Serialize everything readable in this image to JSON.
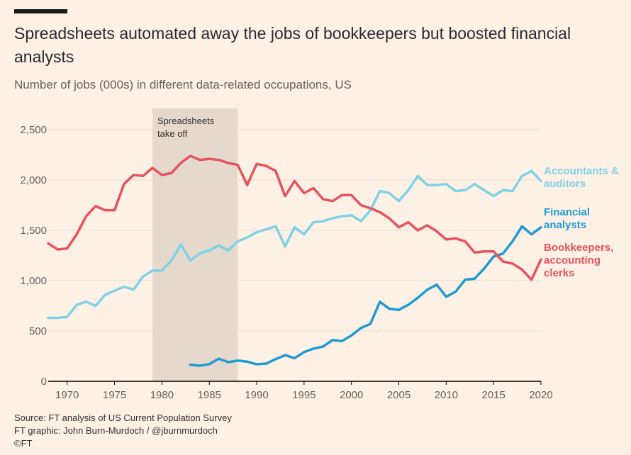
{
  "header": {
    "title": "Spreadsheets automated away the jobs of bookkeepers but boosted financial analysts",
    "subtitle": "Number of jobs (000s) in different data-related occupations, US"
  },
  "footer": {
    "source": "Source: FT analysis of US Current Population Survey",
    "credit": "FT graphic: John Burn-Murdoch / @jburnmurdoch",
    "copyright": "©FT"
  },
  "chart_data": {
    "type": "line",
    "x_range": [
      1968,
      2020
    ],
    "ylim": [
      0,
      2500
    ],
    "grid": true,
    "x_ticks": [
      1970,
      1975,
      1980,
      1985,
      1990,
      1995,
      2000,
      2005,
      2010,
      2015,
      2020
    ],
    "y_ticks": [
      0,
      500,
      1000,
      1500,
      2000,
      2500
    ],
    "y_tick_labels": [
      "0",
      "500",
      "1,000",
      "1,500",
      "2,000",
      "2,500"
    ],
    "shaded_period": {
      "from": 1979,
      "to": 1988,
      "label_lines": [
        "Spreadsheets",
        "take off"
      ]
    },
    "series": [
      {
        "name": "Accountants & auditors",
        "label_lines": [
          "Accountants &",
          "auditors"
        ],
        "color": "#7fd1e6",
        "points": [
          [
            1968,
            630
          ],
          [
            1969,
            630
          ],
          [
            1970,
            640
          ],
          [
            1971,
            760
          ],
          [
            1972,
            790
          ],
          [
            1973,
            750
          ],
          [
            1974,
            860
          ],
          [
            1975,
            900
          ],
          [
            1976,
            940
          ],
          [
            1977,
            910
          ],
          [
            1978,
            1040
          ],
          [
            1979,
            1100
          ],
          [
            1980,
            1100
          ],
          [
            1981,
            1200
          ],
          [
            1982,
            1360
          ],
          [
            1983,
            1200
          ],
          [
            1984,
            1270
          ],
          [
            1985,
            1300
          ],
          [
            1986,
            1350
          ],
          [
            1987,
            1300
          ],
          [
            1988,
            1390
          ],
          [
            1989,
            1430
          ],
          [
            1990,
            1480
          ],
          [
            1991,
            1510
          ],
          [
            1992,
            1540
          ],
          [
            1993,
            1340
          ],
          [
            1994,
            1530
          ],
          [
            1995,
            1460
          ],
          [
            1996,
            1580
          ],
          [
            1997,
            1590
          ],
          [
            1998,
            1620
          ],
          [
            1999,
            1640
          ],
          [
            2000,
            1650
          ],
          [
            2001,
            1590
          ],
          [
            2002,
            1700
          ],
          [
            2003,
            1890
          ],
          [
            2004,
            1870
          ],
          [
            2005,
            1790
          ],
          [
            2006,
            1900
          ],
          [
            2007,
            2040
          ],
          [
            2008,
            1950
          ],
          [
            2009,
            1950
          ],
          [
            2010,
            1960
          ],
          [
            2011,
            1890
          ],
          [
            2012,
            1900
          ],
          [
            2013,
            1960
          ],
          [
            2014,
            1900
          ],
          [
            2015,
            1840
          ],
          [
            2016,
            1900
          ],
          [
            2017,
            1890
          ],
          [
            2018,
            2040
          ],
          [
            2019,
            2090
          ],
          [
            2020,
            1990
          ]
        ]
      },
      {
        "name": "Financial analysts",
        "label_lines": [
          "Financial",
          "analysts"
        ],
        "color": "#1f9bd1",
        "points": [
          [
            1983,
            165
          ],
          [
            1984,
            155
          ],
          [
            1985,
            170
          ],
          [
            1986,
            225
          ],
          [
            1987,
            190
          ],
          [
            1988,
            205
          ],
          [
            1989,
            195
          ],
          [
            1990,
            170
          ],
          [
            1991,
            175
          ],
          [
            1992,
            220
          ],
          [
            1993,
            260
          ],
          [
            1994,
            230
          ],
          [
            1995,
            290
          ],
          [
            1996,
            325
          ],
          [
            1997,
            345
          ],
          [
            1998,
            410
          ],
          [
            1999,
            400
          ],
          [
            2000,
            455
          ],
          [
            2001,
            530
          ],
          [
            2002,
            570
          ],
          [
            2003,
            790
          ],
          [
            2004,
            720
          ],
          [
            2005,
            710
          ],
          [
            2006,
            760
          ],
          [
            2007,
            830
          ],
          [
            2008,
            910
          ],
          [
            2009,
            960
          ],
          [
            2010,
            840
          ],
          [
            2011,
            890
          ],
          [
            2012,
            1010
          ],
          [
            2013,
            1020
          ],
          [
            2014,
            1120
          ],
          [
            2015,
            1240
          ],
          [
            2016,
            1270
          ],
          [
            2017,
            1390
          ],
          [
            2018,
            1540
          ],
          [
            2019,
            1460
          ],
          [
            2020,
            1530
          ]
        ]
      },
      {
        "name": "Bookkeepers, accounting clerks",
        "label_lines": [
          "Bookkeepers,",
          "accounting",
          "clerks"
        ],
        "color": "#e5535d",
        "points": [
          [
            1968,
            1370
          ],
          [
            1969,
            1310
          ],
          [
            1970,
            1320
          ],
          [
            1971,
            1460
          ],
          [
            1972,
            1640
          ],
          [
            1973,
            1740
          ],
          [
            1974,
            1700
          ],
          [
            1975,
            1700
          ],
          [
            1976,
            1960
          ],
          [
            1977,
            2050
          ],
          [
            1978,
            2040
          ],
          [
            1979,
            2120
          ],
          [
            1980,
            2050
          ],
          [
            1981,
            2070
          ],
          [
            1982,
            2170
          ],
          [
            1983,
            2240
          ],
          [
            1984,
            2200
          ],
          [
            1985,
            2210
          ],
          [
            1986,
            2200
          ],
          [
            1987,
            2170
          ],
          [
            1988,
            2150
          ],
          [
            1989,
            1950
          ],
          [
            1990,
            2160
          ],
          [
            1991,
            2140
          ],
          [
            1992,
            2090
          ],
          [
            1993,
            1840
          ],
          [
            1994,
            1990
          ],
          [
            1995,
            1870
          ],
          [
            1996,
            1920
          ],
          [
            1997,
            1810
          ],
          [
            1998,
            1790
          ],
          [
            1999,
            1850
          ],
          [
            2000,
            1850
          ],
          [
            2001,
            1750
          ],
          [
            2002,
            1720
          ],
          [
            2003,
            1680
          ],
          [
            2004,
            1620
          ],
          [
            2005,
            1530
          ],
          [
            2006,
            1580
          ],
          [
            2007,
            1500
          ],
          [
            2008,
            1550
          ],
          [
            2009,
            1490
          ],
          [
            2010,
            1410
          ],
          [
            2011,
            1420
          ],
          [
            2012,
            1390
          ],
          [
            2013,
            1280
          ],
          [
            2014,
            1290
          ],
          [
            2015,
            1290
          ],
          [
            2016,
            1190
          ],
          [
            2017,
            1170
          ],
          [
            2018,
            1110
          ],
          [
            2019,
            1010
          ],
          [
            2020,
            1210
          ]
        ]
      }
    ]
  }
}
